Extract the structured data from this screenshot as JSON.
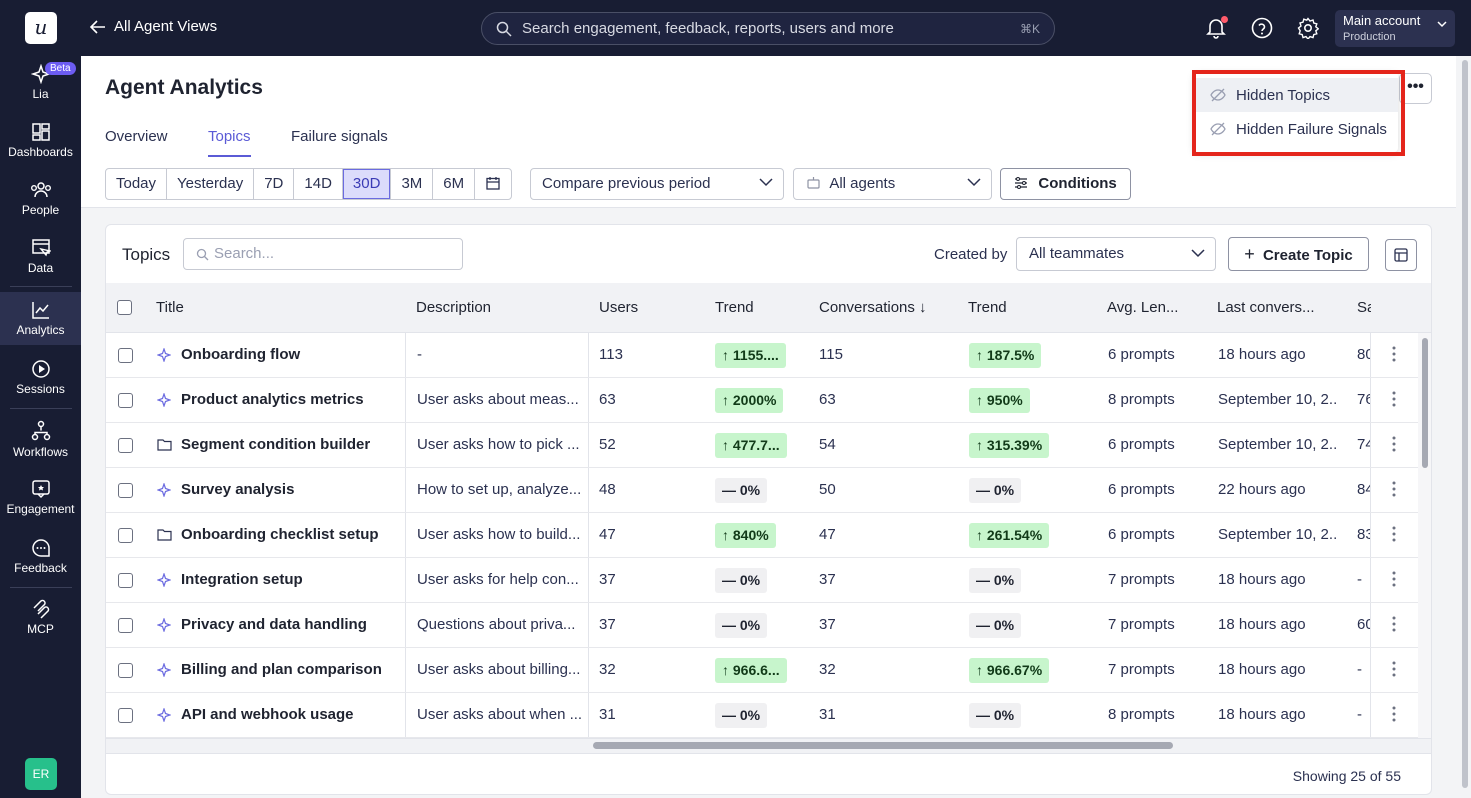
{
  "topbar": {
    "logo": "u",
    "back_label": "All Agent Views",
    "search_placeholder": "Search engagement, feedback, reports, users and more",
    "search_shortcut": "⌘K",
    "account_name": "Main account",
    "account_env": "Production"
  },
  "sidebar": {
    "beta_badge": "Beta",
    "items": [
      {
        "label": "Lia",
        "icon": "sparkle-icon"
      },
      {
        "label": "Dashboards",
        "icon": "dashboard-icon"
      },
      {
        "label": "People",
        "icon": "people-icon"
      },
      {
        "label": "Data",
        "icon": "data-icon"
      },
      {
        "label": "Analytics",
        "icon": "analytics-icon",
        "active": true
      },
      {
        "label": "Sessions",
        "icon": "play-icon"
      },
      {
        "label": "Workflows",
        "icon": "workflow-icon"
      },
      {
        "label": "Engagement",
        "icon": "engagement-icon"
      },
      {
        "label": "Feedback",
        "icon": "feedback-icon"
      },
      {
        "label": "MCP",
        "icon": "mcp-icon"
      }
    ],
    "avatar_initials": "ER"
  },
  "header": {
    "title": "Agent Analytics",
    "tabs": [
      "Overview",
      "Topics",
      "Failure signals"
    ],
    "active_tab": "Topics",
    "more_label": "•••"
  },
  "dropdown": {
    "items": [
      "Hidden Topics",
      "Hidden Failure Signals"
    ]
  },
  "filters": {
    "ranges": [
      "Today",
      "Yesterday",
      "7D",
      "14D",
      "30D",
      "3M",
      "6M"
    ],
    "active_range": "30D",
    "compare": "Compare previous period",
    "agents": "All agents",
    "conditions": "Conditions"
  },
  "table_card": {
    "title": "Topics",
    "search_placeholder": "Search...",
    "created_by_label": "Created by",
    "created_by_value": "All teammates",
    "create_label": "Create Topic",
    "columns": [
      "Title",
      "Description",
      "Users",
      "Trend",
      "Conversations ↓",
      "Trend",
      "Avg. Len...",
      "Last convers...",
      "Sa"
    ],
    "rows": [
      {
        "icon": "sparkle",
        "title": "Onboarding flow",
        "desc": "-",
        "users": "113",
        "trend1": "↑ 1155....",
        "t1": "up",
        "conv": "115",
        "trend2": "↑ 187.5%",
        "t2": "up",
        "avg": "6 prompts",
        "last": "18 hours ago",
        "sa": "80"
      },
      {
        "icon": "sparkle",
        "title": "Product analytics metrics",
        "desc": "User asks about meas...",
        "users": "63",
        "trend1": "↑ 2000%",
        "t1": "up",
        "conv": "63",
        "trend2": "↑ 950%",
        "t2": "up",
        "avg": "8 prompts",
        "last": "September 10, 2...",
        "sa": "76"
      },
      {
        "icon": "folder",
        "title": "Segment condition builder",
        "desc": "User asks how to pick ...",
        "users": "52",
        "trend1": "↑ 477.7...",
        "t1": "up",
        "conv": "54",
        "trend2": "↑ 315.39%",
        "t2": "up",
        "avg": "6 prompts",
        "last": "September 10, 2...",
        "sa": "74"
      },
      {
        "icon": "sparkle",
        "title": "Survey analysis",
        "desc": "How to set up, analyze...",
        "users": "48",
        "trend1": "— 0%",
        "t1": "flat",
        "conv": "50",
        "trend2": "— 0%",
        "t2": "flat",
        "avg": "6 prompts",
        "last": "22 hours ago",
        "sa": "84"
      },
      {
        "icon": "folder",
        "title": "Onboarding checklist setup",
        "desc": "User asks how to build...",
        "users": "47",
        "trend1": "↑ 840%",
        "t1": "up",
        "conv": "47",
        "trend2": "↑ 261.54%",
        "t2": "up",
        "avg": "6 prompts",
        "last": "September 10, 2...",
        "sa": "83"
      },
      {
        "icon": "sparkle",
        "title": "Integration setup",
        "desc": "User asks for help con...",
        "users": "37",
        "trend1": "— 0%",
        "t1": "flat",
        "conv": "37",
        "trend2": "— 0%",
        "t2": "flat",
        "avg": "7 prompts",
        "last": "18 hours ago",
        "sa": "-"
      },
      {
        "icon": "sparkle",
        "title": "Privacy and data handling",
        "desc": "Questions about priva...",
        "users": "37",
        "trend1": "— 0%",
        "t1": "flat",
        "conv": "37",
        "trend2": "— 0%",
        "t2": "flat",
        "avg": "7 prompts",
        "last": "18 hours ago",
        "sa": "60"
      },
      {
        "icon": "sparkle",
        "title": "Billing and plan comparison",
        "desc": "User asks about billing...",
        "users": "32",
        "trend1": "↑ 966.6...",
        "t1": "up",
        "conv": "32",
        "trend2": "↑ 966.67%",
        "t2": "up",
        "avg": "7 prompts",
        "last": "18 hours ago",
        "sa": "-"
      },
      {
        "icon": "sparkle",
        "title": "API and webhook usage",
        "desc": "User asks about when ...",
        "users": "31",
        "trend1": "— 0%",
        "t1": "flat",
        "conv": "31",
        "trend2": "— 0%",
        "t2": "flat",
        "avg": "8 prompts",
        "last": "18 hours ago",
        "sa": "-"
      }
    ],
    "footer": "Showing 25 of 55"
  },
  "colors": {
    "topbar": "#181d33",
    "accent": "#5b5bd6",
    "up_badge": "#c7f5cc",
    "highlight": "#e4251b"
  }
}
